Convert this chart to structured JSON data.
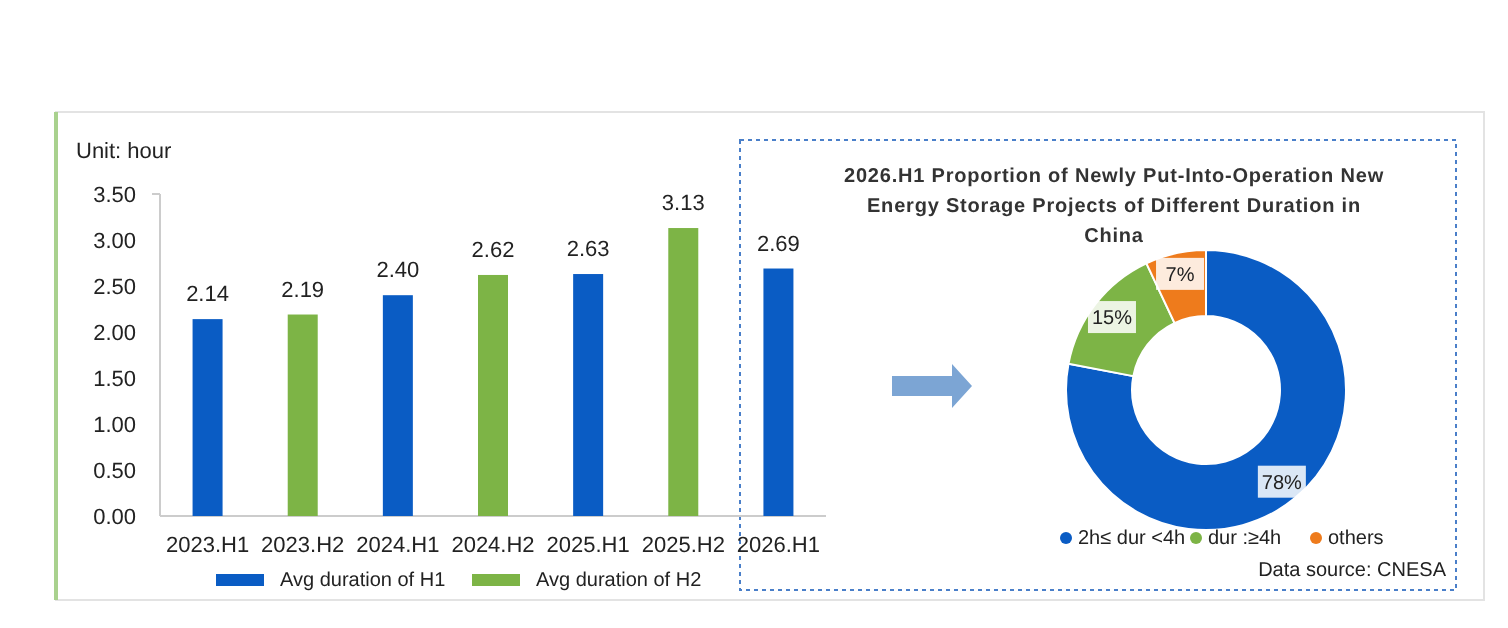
{
  "chart_data": [
    {
      "type": "bar",
      "ylabel": "Unit: hour",
      "categories": [
        "2023.H1",
        "2023.H2",
        "2024.H1",
        "2024.H2",
        "2025.H1",
        "2025.H2",
        "2026.H1"
      ],
      "series": [
        {
          "name": "Avg duration of H1",
          "color": "#0a5cc4",
          "values": [
            2.14,
            null,
            2.4,
            null,
            2.63,
            null,
            2.69
          ]
        },
        {
          "name": "Avg duration of H2",
          "color": "#7db446",
          "values": [
            null,
            2.19,
            null,
            2.62,
            null,
            3.13,
            null
          ]
        }
      ],
      "value_labels": [
        "2.14",
        "2.19",
        "2.40",
        "2.62",
        "2.63",
        "3.13",
        "2.69"
      ],
      "ylim": [
        0,
        3.5
      ],
      "yticks": [
        {
          "value": 0,
          "label": "0.00"
        },
        {
          "value": 0.5,
          "label": "0.50"
        },
        {
          "value": 1,
          "label": "1.00"
        },
        {
          "value": 1.5,
          "label": "1.50"
        },
        {
          "value": 2,
          "label": "2.00"
        },
        {
          "value": 2.5,
          "label": "2.50"
        },
        {
          "value": 3,
          "label": "3.00"
        },
        {
          "value": 3.5,
          "label": "3.50"
        }
      ],
      "grid": false,
      "legend": "bottom"
    },
    {
      "type": "donut",
      "title": "2026.H1 Proportion of Newly Put-Into-Operation New Energy Storage Projects of Different Duration in China",
      "categories": [
        "2h≤ dur <4h",
        "dur :≥4h",
        "others"
      ],
      "values": [
        78,
        15,
        7
      ],
      "colors": [
        "#0a5cc4",
        "#7db446",
        "#ee7b1c"
      ],
      "value_labels": [
        "78%",
        "15%",
        "7%"
      ],
      "legend": "bottom",
      "annotations": [
        "Data source: CNESA"
      ]
    }
  ]
}
